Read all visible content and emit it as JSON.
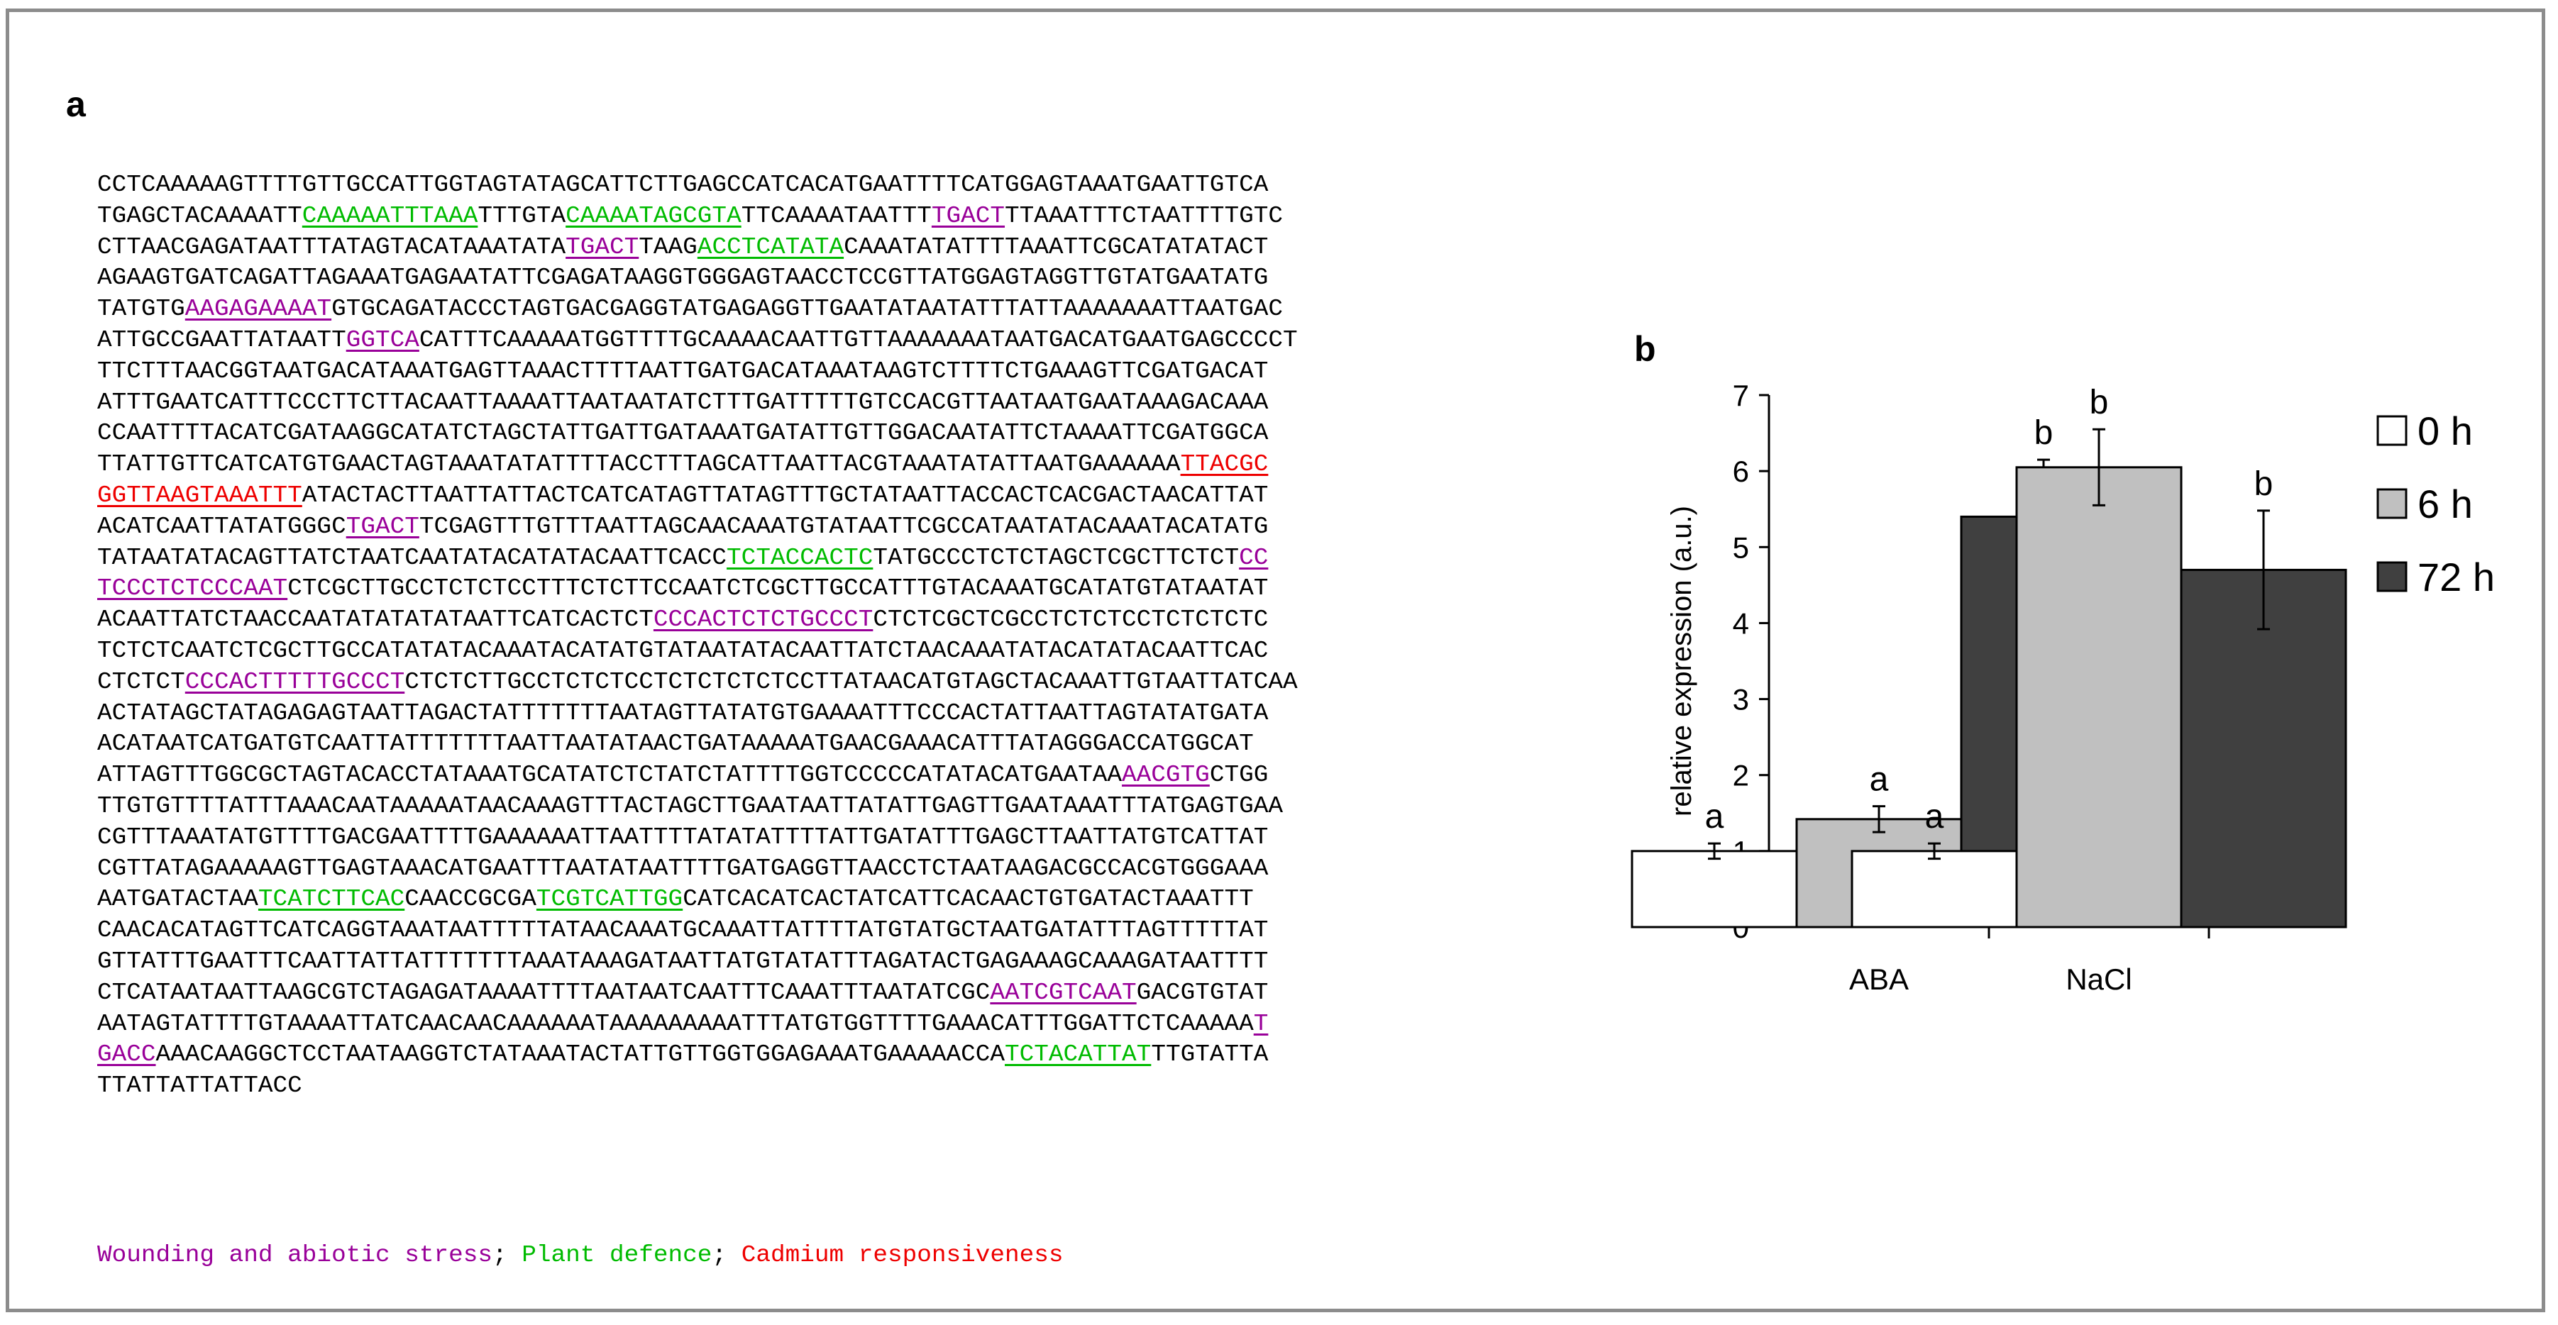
{
  "panels": {
    "a": "a",
    "b": "b"
  },
  "sequence": {
    "lines": [
      [
        {
          "t": "CCTCAAAAAGTTTTGTTGCCATTGGTAGTATAGCATTCTTGAGCCATCACATGAATTTTCATGGAGTAAATGAATTGTCA"
        }
      ],
      [
        {
          "t": "TGAGCTACAAAATT"
        },
        {
          "t": "CAAAAATTTAAA",
          "c": "g"
        },
        {
          "t": "TTTGTA"
        },
        {
          "t": "CAAAATAGCGTA",
          "c": "g"
        },
        {
          "t": "TTCAAAATAATTT"
        },
        {
          "t": "TGACT",
          "c": "p"
        },
        {
          "t": "TTAAATTTCTAATTTTGTC"
        }
      ],
      [
        {
          "t": "CTTAACGAGATAATTTATAGTACATAAATATA"
        },
        {
          "t": "TGACT",
          "c": "p"
        },
        {
          "t": "TAAG"
        },
        {
          "t": "ACCTCATATA",
          "c": "g"
        },
        {
          "t": "CAAATATATTTTAAATTCGCATATATACT"
        }
      ],
      [
        {
          "t": "AGAAGTGATCAGATTAGAAATGAGAATATTCGAGATAAGGTGGGAGTAACCTCCGTTATGGAGTAGGTTGTATGAATATG"
        }
      ],
      [
        {
          "t": "TATGTG"
        },
        {
          "t": "AAGAGAAAAT",
          "c": "p"
        },
        {
          "t": "GTGCAGATACCCTAGTGACGAGGTATGAGAGGTTGAATATAATATTTATTAAAAAAATTAATGAC"
        }
      ],
      [
        {
          "t": "ATTGCCGAATTATAATT"
        },
        {
          "t": "GGTCA",
          "c": "p"
        },
        {
          "t": "CATTTCAAAAATGGTTTTGCAAAACAATTGTTAAAAAAATAATGACATGAATGAGCCCCT"
        }
      ],
      [
        {
          "t": "TTCTTTAACGGTAATGACATAAATGAGTTAAACTTTTAATTGATGACATAAATAAGTCTTTTCTGAAAGTTCGATGACAT"
        }
      ],
      [
        {
          "t": "ATTTGAATCATTTCCCTTCTTACAATTAAAATTAATAATATCTTTGATTTTTGTCCACGTTAATAATGAATAAAGACAAA"
        }
      ],
      [
        {
          "t": "CCAATTTTACATCGATAAGGCATATCTAGCTATTGATTGATAAATGATATTGTTGGACAATATTCTAAAATTCGATGGCA"
        }
      ],
      [
        {
          "t": "TTATTGTTCATCATGTGAACTAGTAAATATATTTTACCTTTAGCATTAATTACGTAAATATATTAATGAAAAAA"
        },
        {
          "t": "TTACGC",
          "c": "r"
        }
      ],
      [
        {
          "t": "GGTTAAGTAAATTT",
          "c": "r"
        },
        {
          "t": "ATACTACTTAATTATTACTCATCATAGTTATAGTTTGCTATAATTACCACTCACGACTAACATTAT"
        }
      ],
      [
        {
          "t": "ACATCAATTATATGGGC"
        },
        {
          "t": "TGACT",
          "c": "p"
        },
        {
          "t": "TCGAGTTTGTTTAATTAGCAACAAATGTATAATTCGCCATAATATACAAATACATATG"
        }
      ],
      [
        {
          "t": "TATAATATACAGTTATCTAATCAATATACATATACAATTCACC"
        },
        {
          "t": "TCTACCACTC",
          "c": "g"
        },
        {
          "t": "TATGCCCTCTCTAGCTCGCTTCTCT"
        },
        {
          "t": "CC",
          "c": "p"
        }
      ],
      [
        {
          "t": "TCCCTCTCCCAAT",
          "c": "p"
        },
        {
          "t": "CTCGCTTGCCTCTCTCCTTTCTCTTCCAATCTCGCTTGCCATTTGTACAAATGCATATGTATAATAT"
        }
      ],
      [
        {
          "t": "ACAATTATCTAACCAATATATATATAATTCATCACTCT"
        },
        {
          "t": "CCCACTCTCTGCCCT",
          "c": "p"
        },
        {
          "t": "CTCTCGCTCGCCTCTCTCCTCTCTCTC"
        }
      ],
      [
        {
          "t": "TCTCTCAATCTCGCTTGCCATATATACAAATACATATGTATAATATACAATTATCTAACAAATATACATATACAATTCAC"
        }
      ],
      [
        {
          "t": "CTCTCT"
        },
        {
          "t": "CCCACTTTTTGCCCT",
          "c": "p"
        },
        {
          "t": "CTCTCTTGCCTCTCTCCTCTCTCTCTCCTTATAACATGTAGCTACAAATTGTAATTATCAA"
        }
      ],
      [
        {
          "t": "ACTATAGCTATAGAGAGTAATTAGACTATTTTTTTAATAGTTATATGTGAAAATTTCCCACTATTAATTAGTATATGATA"
        }
      ],
      [
        {
          "t": "ACATAATCATGATGTCAATTATTTTTTTAATTAATATAACTGATAAAAATGAACGAAACATTTATAGGGACCATGGCAT"
        }
      ],
      [
        {
          "t": "ATTAGTTTGGCGCTAGTACACCTATAAATGCATATCTCTATCTATTTTGGTCCCCCATATACATGAATAA"
        },
        {
          "t": "AACGTG",
          "c": "p"
        },
        {
          "t": "CTGG"
        }
      ],
      [
        {
          "t": "TTGTGTTTTATTTAAACAATAAAAATAACAAAGTTTACTAGCTTGAATAATTATATTGAGTTGAATAAATTTATGAGTGAA"
        }
      ],
      [
        {
          "t": "CGTTTAAATATGTTTTGACGAATTTTGAAAAAATTAATTTTATATATTTTATTGATATTTGAGCTTAATTATGTCATTAT"
        }
      ],
      [
        {
          "t": "CGTTATAGAAAAAGTTGAGTAAACATGAATTTAATATAATTTTGATGAGGTTAACCTCTAATAAGACGCCACGTGGGAAA"
        }
      ],
      [
        {
          "t": "AATGATACTAA"
        },
        {
          "t": "TCATCTTCAC",
          "c": "g"
        },
        {
          "t": "CAACCGCGA"
        },
        {
          "t": "TCGTCATTGG",
          "c": "g"
        },
        {
          "t": "CATCACATCACTATCATTCACAACTGTGATACTAAATTT"
        }
      ],
      [
        {
          "t": "CAACACATAGTTCATCAGGTAAATAATTTTTATAACAAATGCAAATTATTTTATGTATGCTAATGATATTTAGTTTTTAT"
        }
      ],
      [
        {
          "t": "GTTATTTGAATTTCAATTATTATTTTTTTAAATAAAGATAATTATGTATATTTAGATACTGAGAAAGCAAAGATAATTTT"
        }
      ],
      [
        {
          "t": "CTCATAATAATTAAGCGTCTAGAGATAAAATTTTAATAATCAATTTCAAATTTAATATCGC"
        },
        {
          "t": "AATCGTCAAT",
          "c": "p"
        },
        {
          "t": "GACGTGTAT"
        }
      ],
      [
        {
          "t": "AATAGTATTTTGTAAAATTATCAACAACAAAAAATAAAAAAAAATTTATGTGGTTTTGAAACATTTGGATTCTCAAAAA"
        },
        {
          "t": "T",
          "c": "p"
        }
      ],
      [
        {
          "t": "GACC",
          "c": "p"
        },
        {
          "t": "AAACAAGGCTCCTAATAAGGTCTATAAATACTATTGTTGGTGGAGAAATGAAAAACCA"
        },
        {
          "t": "TCTACATTAT",
          "c": "g"
        },
        {
          "t": "TTGTATTA"
        }
      ],
      [
        {
          "t": "TTATTATTATTACC"
        }
      ]
    ]
  },
  "legend": [
    {
      "text": "Wounding and abiotic stress",
      "color": "#990099"
    },
    {
      "text": "; ",
      "color": "#000000"
    },
    {
      "text": "Plant defence",
      "color": "#00bb00"
    },
    {
      "text": "; ",
      "color": "#000000"
    },
    {
      "text": "Cadmium responsiveness",
      "color": "#ee0000"
    }
  ],
  "chart_data": {
    "type": "bar",
    "categories": [
      "ABA",
      "NaCl"
    ],
    "ylabel": "relative expression (a.u.)",
    "ylim": [
      0,
      7
    ],
    "yticks": [
      0,
      1,
      2,
      3,
      4,
      5,
      6,
      7
    ],
    "grid": false,
    "legend_position": "right",
    "series": [
      {
        "name": "0 h",
        "values": [
          1.0,
          1.0
        ],
        "errors": [
          0.1,
          0.1
        ],
        "labels": [
          "a",
          "a"
        ],
        "color": "#ffffff"
      },
      {
        "name": "6 h",
        "values": [
          1.42,
          6.05
        ],
        "errors": [
          0.17,
          0.5
        ],
        "labels": [
          "a",
          "b"
        ],
        "color": "#c0c0c0"
      },
      {
        "name": "72 h",
        "values": [
          5.4,
          4.7
        ],
        "errors": [
          0.75,
          0.78
        ],
        "labels": [
          "b",
          "b"
        ],
        "color": "#404040"
      }
    ]
  }
}
